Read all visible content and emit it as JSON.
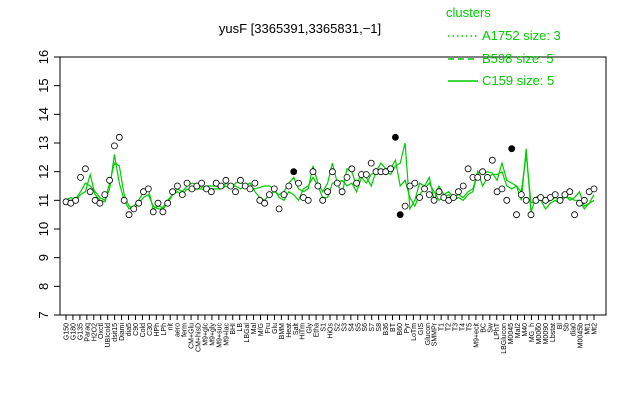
{
  "chart_data": {
    "type": "line",
    "title": "yusF [3365391,3365831,−1]",
    "xlabel": "",
    "ylabel": "",
    "ylim": [
      7,
      16
    ],
    "yticks": [
      7,
      8,
      9,
      10,
      11,
      12,
      13,
      14,
      15,
      16
    ],
    "grid": false,
    "legend_position": "top-right",
    "legend": {
      "title": "clusters",
      "entries": [
        {
          "label": "A1752 size: 3",
          "dash": "dotted"
        },
        {
          "label": "B598 size: 5",
          "dash": "dashed"
        },
        {
          "label": "C159 size: 5",
          "dash": "solid"
        }
      ]
    },
    "colors": {
      "lines": "#00cc00",
      "legend": "#00cc00",
      "points_fill": "#ffffff",
      "points_dark": "#000000"
    },
    "x_tick_labels": [
      "G150",
      "G180",
      "G135",
      "Paraq",
      "H2O2",
      "Oxctl",
      "UBIcold",
      "dsit15",
      "Diami",
      "dia5",
      "C90",
      "Cold",
      "C30",
      "HPh",
      "LPh",
      "nit",
      "aero",
      "ferm",
      "CM+Glu",
      "CM+hisD",
      "M9+glc",
      "M9+gly",
      "M9+suc",
      "M9+lac",
      "BHI",
      "LB",
      "LBGal",
      "Mal",
      "M/G",
      "Fru",
      "Glu",
      "BMM",
      "Heat",
      "Salt",
      "HiTm",
      "Gly",
      "Etha",
      "S1",
      "HiOs",
      "S2",
      "S3",
      "S4",
      "S5",
      "S6",
      "S7",
      "S8",
      "B36",
      "BT",
      "B60",
      "Pyr",
      "LoTm",
      "GIS",
      "Glucon",
      "SMMPr",
      "T1",
      "T2",
      "T3",
      "T4",
      "T5",
      "M9+ecit",
      "BC",
      "Sw",
      "LPhT",
      "LBGlucon",
      "M0045",
      "Mal2",
      "M40",
      "MG_h",
      "M0060",
      "M0090",
      "Lbstat",
      "Bl",
      "Sb",
      "dia0",
      "M0045b",
      "Mt1",
      "Mt2"
    ],
    "series": [
      {
        "x": [
          1,
          2,
          3,
          4,
          5,
          6,
          7,
          8,
          9,
          10,
          11,
          12,
          13,
          14,
          15,
          16,
          17,
          18,
          19,
          20,
          21,
          22,
          23,
          24,
          25,
          26,
          27,
          28,
          29,
          30,
          31,
          32,
          33,
          34,
          35,
          36,
          37,
          38,
          39,
          40,
          41,
          42,
          43,
          44,
          45,
          46,
          47,
          48,
          49,
          50,
          51,
          52,
          53,
          54,
          55,
          56,
          57,
          58,
          59,
          60,
          61,
          62,
          63,
          64,
          65,
          66,
          67,
          68,
          69,
          70,
          71,
          72,
          73,
          74,
          75,
          76,
          77,
          78,
          79,
          80,
          81,
          82,
          83,
          84,
          85,
          86,
          87,
          88,
          89,
          90,
          91,
          92,
          93,
          94,
          95,
          96,
          97,
          98,
          99,
          100,
          101,
          102,
          103,
          104,
          105,
          106,
          107,
          108,
          109,
          110
        ],
        "values": [
          11.0,
          11.1,
          11.0,
          11.2,
          11.3,
          11.9,
          11.2,
          11.0,
          10.95,
          11.4,
          12.6,
          11.6,
          11.0,
          10.7,
          10.8,
          11.0,
          11.3,
          11.4,
          10.7,
          10.8,
          10.75,
          11.0,
          11.2,
          11.4,
          11.3,
          11.5,
          11.6,
          11.55,
          11.45,
          11.5,
          11.5,
          11.5,
          11.4,
          11.5,
          11.4,
          11.6,
          11.65,
          11.5,
          11.45,
          11.4,
          11.45,
          11.5,
          11.5,
          11.4,
          11.1,
          11.0,
          11.3,
          11.2,
          11.0,
          11.4,
          11.5,
          11.8,
          11.5,
          11.1,
          11.1,
          11.6,
          11.6,
          11.2,
          12.1,
          12.0,
          11.5,
          12.0,
          11.8,
          11.5,
          12.0,
          11.9,
          12.0,
          11.9,
          12.2,
          12.3,
          13.0,
          10.7,
          11.0,
          11.6,
          11.5,
          11.8,
          11.0,
          11.5,
          11.2,
          11.3,
          11.1,
          11.2,
          11.1,
          11.3,
          11.4,
          12.0,
          11.9,
          12.0,
          11.95,
          11.7,
          12.3,
          11.7,
          11.6,
          11.5,
          11.0,
          12.8,
          10.6,
          11.1,
          11.2,
          10.9,
          11.0,
          11.1,
          11.0,
          11.2,
          11.0,
          11.1,
          11.3,
          10.8,
          10.9,
          11.2
        ],
        "dash": "solid"
      },
      {
        "x": [
          1,
          2,
          3,
          4,
          5,
          6,
          7,
          8,
          9,
          10,
          11,
          12,
          13,
          14,
          15,
          16,
          17,
          18,
          19,
          20,
          21,
          22,
          23,
          24,
          25,
          26,
          27,
          28,
          29,
          30,
          31,
          32,
          33,
          34,
          35,
          36,
          37,
          38,
          39,
          40,
          41,
          42,
          43,
          44,
          45,
          46,
          47,
          48,
          49,
          50,
          51,
          52,
          53,
          54,
          55,
          56,
          57,
          58,
          59,
          60,
          61,
          62,
          63,
          64,
          65,
          66,
          67,
          68,
          69,
          70,
          71,
          72,
          73,
          74,
          75,
          76,
          77,
          78,
          79,
          80,
          81,
          82,
          83,
          84,
          85,
          86,
          87,
          88,
          89,
          90,
          91,
          92,
          93,
          94,
          95,
          96,
          97,
          98,
          99,
          100,
          101,
          102,
          103,
          104,
          105,
          106,
          107,
          108,
          109,
          110
        ],
        "values": [
          11.0,
          11.0,
          11.05,
          11.3,
          11.6,
          11.5,
          11.3,
          11.1,
          11.0,
          11.6,
          12.3,
          12.2,
          11.2,
          10.8,
          10.7,
          10.9,
          11.1,
          11.2,
          10.8,
          10.7,
          10.7,
          10.9,
          11.2,
          11.3,
          11.2,
          11.4,
          11.3,
          11.4,
          11.4,
          11.3,
          11.4,
          11.4,
          11.4,
          11.6,
          11.5,
          11.5,
          11.4,
          11.5,
          11.6,
          11.3,
          11.1,
          11.0,
          11.2,
          11.3,
          11.2,
          11.3,
          11.6,
          11.8,
          11.4,
          11.3,
          11.4,
          12.2,
          11.6,
          11.3,
          11.6,
          12.3,
          11.6,
          11.7,
          11.5,
          11.6,
          11.3,
          11.8,
          11.6,
          11.9,
          12.0,
          12.3,
          12.1,
          12.1,
          12.4,
          11.5,
          11.7,
          11.1,
          10.8,
          11.2,
          11.4,
          11.6,
          11.3,
          11.0,
          11.1,
          11.2,
          11.0,
          11.1,
          11.0,
          11.2,
          11.3,
          12.0,
          11.5,
          11.8,
          11.9,
          11.9,
          12.0,
          11.5,
          11.4,
          11.5,
          11.3,
          12.6,
          10.9,
          11.0,
          11.0,
          10.7,
          10.9,
          11.0,
          10.9,
          11.1,
          11.1,
          11.0,
          11.0,
          10.7,
          10.9,
          11.0
        ],
        "dash": "solid"
      }
    ],
    "points": {
      "x": [
        1,
        2,
        3,
        4,
        5,
        6,
        7,
        8,
        9,
        10,
        11,
        12,
        13,
        14,
        15,
        16,
        17,
        18,
        19,
        20,
        21,
        22,
        23,
        24,
        25,
        26,
        27,
        28,
        29,
        30,
        31,
        32,
        33,
        34,
        35,
        36,
        37,
        38,
        39,
        40,
        41,
        42,
        43,
        44,
        45,
        46,
        47,
        48,
        49,
        50,
        51,
        52,
        53,
        54,
        55,
        56,
        57,
        58,
        59,
        60,
        61,
        62,
        63,
        64,
        65,
        66,
        67,
        68,
        69,
        70,
        71,
        72,
        73,
        74,
        75,
        76,
        77,
        78,
        79,
        80,
        81,
        82,
        83,
        84,
        85,
        86,
        87,
        88,
        89,
        90,
        91,
        92,
        93,
        94,
        95,
        96,
        97,
        98,
        99,
        100,
        101,
        102,
        103,
        104,
        105,
        106,
        107,
        108,
        109,
        110
      ],
      "y": [
        10.95,
        10.9,
        11.0,
        11.8,
        12.1,
        11.3,
        11.0,
        10.9,
        11.2,
        11.7,
        12.9,
        13.2,
        11.0,
        10.5,
        10.7,
        10.9,
        11.3,
        11.4,
        10.6,
        10.9,
        10.6,
        10.9,
        11.3,
        11.5,
        11.2,
        11.6,
        11.4,
        11.5,
        11.6,
        11.4,
        11.3,
        11.6,
        11.5,
        11.7,
        11.5,
        11.3,
        11.7,
        11.5,
        11.4,
        11.6,
        11.0,
        10.9,
        11.2,
        11.4,
        10.7,
        11.2,
        11.5,
        12.0,
        11.6,
        11.1,
        11.0,
        12.0,
        11.5,
        11.0,
        11.3,
        12.0,
        11.6,
        11.3,
        11.8,
        12.1,
        11.6,
        11.9,
        11.9,
        12.3,
        12.0,
        12.0,
        12.0,
        12.1,
        13.2,
        10.5,
        10.8,
        11.5,
        11.6,
        11.1,
        11.4,
        11.2,
        11.0,
        11.3,
        11.1,
        11.0,
        11.1,
        11.3,
        11.5,
        12.1,
        11.8,
        11.8,
        12.0,
        11.8,
        12.4,
        11.3,
        11.4,
        11.0,
        12.8,
        10.5,
        11.2,
        11.0,
        10.5,
        11.0,
        11.1,
        11.0,
        11.1,
        11.2,
        11.0,
        11.2,
        11.3,
        10.5,
        10.9,
        11.0,
        11.3,
        11.4
      ],
      "filled": [
        false,
        false,
        false,
        false,
        false,
        false,
        false,
        false,
        false,
        false,
        false,
        false,
        false,
        false,
        false,
        false,
        false,
        false,
        false,
        false,
        false,
        false,
        false,
        false,
        false,
        false,
        false,
        false,
        false,
        false,
        false,
        false,
        false,
        false,
        false,
        false,
        false,
        false,
        false,
        false,
        false,
        false,
        false,
        false,
        false,
        false,
        false,
        true,
        false,
        false,
        false,
        false,
        false,
        false,
        false,
        false,
        false,
        false,
        false,
        false,
        false,
        false,
        false,
        false,
        false,
        false,
        false,
        false,
        true,
        true,
        false,
        false,
        false,
        false,
        false,
        false,
        false,
        false,
        false,
        false,
        false,
        false,
        false,
        false,
        false,
        false,
        false,
        false,
        false,
        false,
        false,
        false,
        true,
        false,
        false,
        false,
        false,
        false,
        false,
        false,
        false,
        false,
        false,
        false,
        false,
        false,
        false,
        false,
        false,
        false
      ]
    }
  }
}
